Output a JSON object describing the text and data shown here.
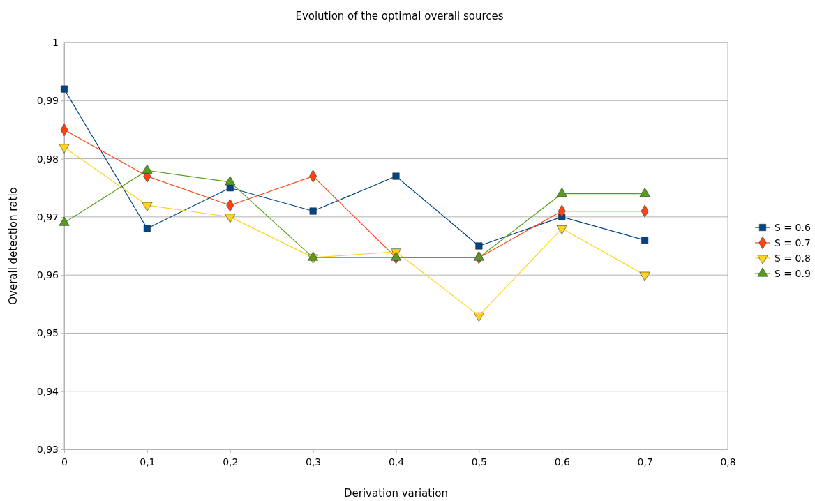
{
  "chart_data": {
    "type": "line",
    "title": "Evolution of the optimal overall sources",
    "xlabel": "Derivation variation",
    "ylabel": "Overall detection ratio",
    "x": [
      0,
      0.1,
      0.2,
      0.3,
      0.4,
      0.5,
      0.6,
      0.7
    ],
    "xlim": [
      0,
      0.8
    ],
    "xticks": [
      {
        "value": 0,
        "label": "0"
      },
      {
        "value": 0.1,
        "label": "0,1"
      },
      {
        "value": 0.2,
        "label": "0,2"
      },
      {
        "value": 0.3,
        "label": "0,3"
      },
      {
        "value": 0.4,
        "label": "0,4"
      },
      {
        "value": 0.5,
        "label": "0,5"
      },
      {
        "value": 0.6,
        "label": "0,6"
      },
      {
        "value": 0.7,
        "label": "0,7"
      },
      {
        "value": 0.8,
        "label": "0,8"
      }
    ],
    "ylim": [
      0.93,
      1
    ],
    "yticks": [
      {
        "value": 0.93,
        "label": "0,93"
      },
      {
        "value": 0.94,
        "label": "0,94"
      },
      {
        "value": 0.95,
        "label": "0,95"
      },
      {
        "value": 0.96,
        "label": "0,96"
      },
      {
        "value": 0.97,
        "label": "0,97"
      },
      {
        "value": 0.98,
        "label": "0,98"
      },
      {
        "value": 0.99,
        "label": "0,99"
      },
      {
        "value": 1,
        "label": "1"
      }
    ],
    "grid": "y",
    "legend": "right",
    "series": [
      {
        "name": "S = 0.6",
        "color": "#004586",
        "marker": "square",
        "values": [
          0.992,
          0.968,
          0.975,
          0.971,
          0.977,
          0.965,
          0.97,
          0.966
        ]
      },
      {
        "name": "S = 0.7",
        "color": "#ff420e",
        "marker": "diamond",
        "values": [
          0.985,
          0.977,
          0.972,
          0.977,
          0.963,
          0.963,
          0.971,
          0.971
        ]
      },
      {
        "name": "S = 0.8",
        "color": "#ffd320",
        "marker": "triangle-down",
        "values": [
          0.982,
          0.972,
          0.97,
          0.963,
          0.964,
          0.953,
          0.968,
          0.96
        ]
      },
      {
        "name": "S = 0.9",
        "color": "#579d1c",
        "marker": "triangle",
        "values": [
          0.969,
          0.978,
          0.976,
          0.963,
          0.963,
          0.963,
          0.974,
          0.974
        ]
      }
    ]
  }
}
